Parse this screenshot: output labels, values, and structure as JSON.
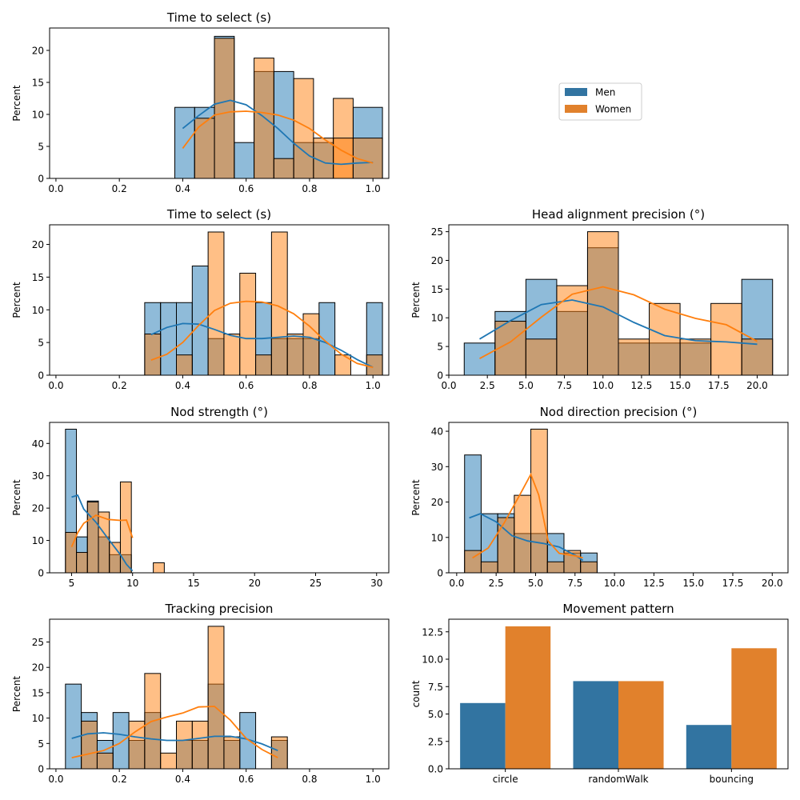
{
  "colors": {
    "men": "#1f77b4",
    "women": "#ff7f0e",
    "men_bar": "#3274a1",
    "women_bar": "#e1812c",
    "overlap": "#808a8f"
  },
  "legend": {
    "entries": [
      "Men",
      "Women"
    ]
  },
  "chart_data": [
    {
      "type": "histogram",
      "title": "Time to select (s)",
      "ylabel": "Percent",
      "xlim": [
        -0.02,
        1.05
      ],
      "ylim": [
        0,
        23.5
      ],
      "xticks": [
        0.0,
        0.2,
        0.4,
        0.6,
        0.8,
        1.0
      ],
      "xtick_labels": [
        "0.0",
        "0.2",
        "0.4",
        "0.6",
        "0.8",
        "1.0"
      ],
      "yticks": [
        0,
        5,
        10,
        15,
        20
      ],
      "ytick_labels": [
        "0",
        "5",
        "10",
        "15",
        "20"
      ],
      "bin_edges": [
        0.375,
        0.4375,
        0.5,
        0.5625,
        0.625,
        0.6875,
        0.75,
        0.8125,
        0.875,
        0.9375,
        1.03
      ],
      "series": [
        {
          "name": "Men",
          "values": [
            11.1,
            11.1,
            22.2,
            5.6,
            16.7,
            16.7,
            5.6,
            5.6,
            0,
            11.1
          ],
          "kde_x": [
            0.4,
            0.45,
            0.5,
            0.55,
            0.6,
            0.65,
            0.7,
            0.75,
            0.8,
            0.85,
            0.9,
            0.95,
            1.0
          ],
          "kde_y": [
            7.8,
            9.8,
            11.6,
            12.2,
            11.5,
            9.8,
            7.8,
            5.5,
            3.5,
            2.4,
            2.2,
            2.4,
            2.5
          ]
        },
        {
          "name": "Women",
          "values": [
            0,
            9.4,
            21.9,
            0,
            18.8,
            3.1,
            15.6,
            6.3,
            12.5,
            0
          ],
          "extra_bins": [
            {
              "x0": 0.875,
              "x1": 0.9375,
              "value": 6.3
            },
            {
              "x0": 0.9375,
              "x1": 1.03,
              "value": 6.3
            }
          ],
          "kde_x": [
            0.4,
            0.45,
            0.5,
            0.55,
            0.6,
            0.65,
            0.7,
            0.75,
            0.8,
            0.85,
            0.9,
            0.95,
            1.0
          ],
          "kde_y": [
            4.7,
            8.0,
            9.9,
            10.4,
            10.5,
            10.3,
            9.9,
            9.1,
            7.8,
            6.0,
            4.4,
            3.1,
            2.4
          ]
        }
      ]
    },
    {
      "type": "histogram",
      "title": "Time to select (s)",
      "ylabel": "Percent",
      "xlim": [
        -0.02,
        1.05
      ],
      "ylim": [
        0,
        23
      ],
      "xticks": [
        0.0,
        0.2,
        0.4,
        0.6,
        0.8,
        1.0
      ],
      "xtick_labels": [
        "0.0",
        "0.2",
        "0.4",
        "0.6",
        "0.8",
        "1.0"
      ],
      "yticks": [
        0,
        5,
        10,
        15,
        20
      ],
      "ytick_labels": [
        "0",
        "5",
        "10",
        "15",
        "20"
      ],
      "bin_edges": [
        0.28,
        0.33,
        0.38,
        0.43,
        0.48,
        0.53,
        0.58,
        0.63,
        0.68,
        0.73,
        0.78,
        0.83,
        0.88,
        0.93,
        0.98,
        1.03
      ],
      "series": [
        {
          "name": "Men",
          "values": [
            11.1,
            11.1,
            11.1,
            16.7,
            5.6,
            0,
            0,
            11.1,
            5.6,
            5.6,
            5.6,
            11.1,
            0,
            0,
            11.1
          ],
          "kde_x": [
            0.3,
            0.35,
            0.4,
            0.45,
            0.5,
            0.55,
            0.6,
            0.65,
            0.7,
            0.75,
            0.8,
            0.85,
            0.9,
            0.95,
            1.0
          ],
          "kde_y": [
            6.2,
            7.3,
            7.9,
            7.8,
            7.0,
            6.1,
            5.6,
            5.6,
            5.8,
            6.0,
            5.8,
            5.0,
            3.8,
            2.4,
            1.2
          ]
        },
        {
          "name": "Women",
          "values": [
            6.3,
            0,
            3.1,
            0,
            21.9,
            6.3,
            15.6,
            3.1,
            21.9,
            6.3,
            9.4,
            0,
            3.1,
            0,
            3.1
          ],
          "kde_x": [
            0.3,
            0.35,
            0.4,
            0.45,
            0.5,
            0.55,
            0.6,
            0.65,
            0.7,
            0.75,
            0.8,
            0.85,
            0.9,
            0.95,
            1.0
          ],
          "kde_y": [
            2.3,
            3.2,
            5.0,
            7.6,
            9.9,
            11.0,
            11.3,
            11.2,
            10.6,
            9.4,
            7.5,
            5.2,
            3.2,
            1.8,
            1.2
          ]
        }
      ]
    },
    {
      "type": "histogram",
      "title": "Head alignment precision (°)",
      "ylabel": "Percent",
      "xlim": [
        0,
        22
      ],
      "ylim": [
        0,
        26.2
      ],
      "xticks": [
        0,
        2.5,
        5,
        7.5,
        10,
        12.5,
        15,
        17.5,
        20
      ],
      "xtick_labels": [
        "0.0",
        "2.5",
        "5.0",
        "7.5",
        "10.0",
        "12.5",
        "15.0",
        "17.5",
        "20.0"
      ],
      "yticks": [
        0,
        5,
        10,
        15,
        20,
        25
      ],
      "ytick_labels": [
        "0",
        "5",
        "10",
        "15",
        "20",
        "25"
      ],
      "bin_edges": [
        1,
        3,
        5,
        7,
        9,
        11,
        13,
        15,
        17,
        19,
        21
      ],
      "series": [
        {
          "name": "Men",
          "values": [
            5.6,
            11.1,
            16.7,
            11.1,
            22.2,
            5.6,
            5.6,
            5.6,
            0,
            16.7
          ],
          "kde_x": [
            2,
            4,
            6,
            8,
            10,
            12,
            14,
            16,
            18,
            20
          ],
          "kde_y": [
            6.3,
            9.5,
            12.3,
            13.1,
            11.9,
            9.2,
            6.9,
            6.0,
            5.8,
            5.4
          ]
        },
        {
          "name": "Women",
          "values": [
            0,
            9.4,
            6.3,
            15.6,
            25.0,
            6.3,
            12.5,
            6.3,
            12.5,
            6.3
          ],
          "kde_x": [
            2,
            4,
            6,
            8,
            10,
            12,
            14,
            16,
            18,
            20
          ],
          "kde_y": [
            2.9,
            5.8,
            10.1,
            14.1,
            15.4,
            14.0,
            11.5,
            9.9,
            8.8,
            5.9
          ]
        }
      ]
    },
    {
      "type": "histogram",
      "title": "Nod strength (°)",
      "ylabel": "Percent",
      "xlim": [
        3.2,
        31
      ],
      "ylim": [
        0,
        46.5
      ],
      "xticks": [
        5,
        10,
        15,
        20,
        25,
        30
      ],
      "xtick_labels": [
        "5",
        "10",
        "15",
        "20",
        "25",
        "30"
      ],
      "yticks": [
        0,
        10,
        20,
        30,
        40
      ],
      "ytick_labels": [
        "0",
        "10",
        "20",
        "30",
        "40"
      ],
      "bin_edges": [
        4.5,
        5.4,
        6.3,
        7.2,
        8.1,
        9.0,
        9.9,
        10.8,
        11.7,
        12.6
      ],
      "series": [
        {
          "name": "Men",
          "values": [
            44.4,
            11.1,
            22.2,
            11.1,
            5.6,
            5.6,
            0,
            0,
            0
          ],
          "kde_x": [
            5,
            5.5,
            6,
            7,
            8,
            9,
            9.5,
            10
          ],
          "kde_y": [
            23.4,
            24.0,
            19.7,
            15.6,
            10.5,
            5.6,
            2.6,
            0.6
          ]
        },
        {
          "name": "Women",
          "values": [
            12.5,
            6.3,
            21.9,
            18.8,
            9.4,
            28.1,
            0,
            0,
            3.1
          ],
          "kde_x": [
            5,
            5.5,
            6,
            7,
            8,
            9,
            9.5,
            10
          ],
          "kde_y": [
            8.0,
            12.4,
            15.3,
            17.8,
            16.5,
            16.2,
            16.3,
            10.8
          ]
        }
      ]
    },
    {
      "type": "histogram",
      "title": "Nod direction precision (°)",
      "ylabel": "Percent",
      "xlim": [
        -0.5,
        21
      ],
      "ylim": [
        0,
        42.5
      ],
      "xticks": [
        0,
        2.5,
        5,
        7.5,
        10,
        12.5,
        15,
        17.5,
        20
      ],
      "xtick_labels": [
        "0.0",
        "2.5",
        "5.0",
        "7.5",
        "10.0",
        "12.5",
        "15.0",
        "17.5",
        "20.0"
      ],
      "yticks": [
        0,
        10,
        20,
        30,
        40
      ],
      "ytick_labels": [
        "0",
        "10",
        "20",
        "30",
        "40"
      ],
      "bin_edges": [
        0.5,
        1.55,
        2.6,
        3.65,
        4.7,
        5.75,
        6.8,
        7.85,
        8.9
      ],
      "series": [
        {
          "name": "Men",
          "values": [
            33.3,
            16.7,
            16.7,
            11.1,
            11.1,
            11.1,
            5.6,
            5.6
          ],
          "kde_x": [
            0.8,
            1.5,
            2.5,
            3.5,
            4.5,
            5.5,
            6.5,
            7.5,
            8.0
          ],
          "kde_y": [
            15.5,
            16.7,
            14.4,
            10.5,
            9.0,
            8.3,
            7.3,
            5.0,
            3.5
          ]
        },
        {
          "name": "Women",
          "values": [
            6.3,
            3.1,
            15.6,
            21.9,
            40.6,
            3.1,
            6.3,
            3.1
          ],
          "kde_x": [
            1.0,
            2.0,
            3.0,
            4.0,
            4.7,
            5.2,
            5.8,
            6.5,
            7.5,
            8.0
          ],
          "kde_y": [
            4.2,
            7.0,
            14.0,
            22.0,
            27.8,
            22.0,
            9.0,
            5.5,
            4.8,
            4.2
          ]
        }
      ]
    },
    {
      "type": "histogram",
      "title": "Tracking precision",
      "ylabel": "Percent",
      "xlim": [
        -0.02,
        1.05
      ],
      "ylim": [
        0,
        29.5
      ],
      "xticks": [
        0.0,
        0.2,
        0.4,
        0.6,
        0.8,
        1.0
      ],
      "xtick_labels": [
        "0.0",
        "0.2",
        "0.4",
        "0.6",
        "0.8",
        "1.0"
      ],
      "yticks": [
        0,
        5,
        10,
        15,
        20,
        25
      ],
      "ytick_labels": [
        "0",
        "5",
        "10",
        "15",
        "20",
        "25"
      ],
      "bin_edges": [
        0.03,
        0.08,
        0.13,
        0.18,
        0.23,
        0.28,
        0.33,
        0.38,
        0.43,
        0.48,
        0.53,
        0.58,
        0.63,
        0.68,
        0.73
      ],
      "series": [
        {
          "name": "Men",
          "values": [
            16.7,
            11.1,
            5.6,
            11.1,
            5.6,
            11.1,
            0,
            5.6,
            5.6,
            16.7,
            5.6,
            11.1,
            0,
            5.6
          ],
          "kde_x": [
            0.05,
            0.1,
            0.15,
            0.2,
            0.25,
            0.3,
            0.35,
            0.4,
            0.45,
            0.5,
            0.55,
            0.6,
            0.65,
            0.7
          ],
          "kde_y": [
            6.0,
            6.9,
            7.1,
            6.8,
            6.3,
            5.9,
            5.6,
            5.6,
            6.0,
            6.4,
            6.4,
            5.9,
            4.9,
            3.6
          ]
        },
        {
          "name": "Women",
          "values": [
            0,
            9.4,
            3.1,
            0,
            9.4,
            18.8,
            3.1,
            9.4,
            9.4,
            28.1,
            6.3,
            0,
            0,
            6.3
          ],
          "kde_x": [
            0.05,
            0.1,
            0.15,
            0.2,
            0.25,
            0.3,
            0.35,
            0.4,
            0.45,
            0.5,
            0.55,
            0.6,
            0.65,
            0.7
          ],
          "kde_y": [
            2.2,
            2.9,
            3.6,
            5.0,
            7.3,
            9.3,
            10.2,
            11.0,
            12.2,
            12.3,
            9.6,
            6.0,
            3.8,
            2.2
          ]
        }
      ]
    },
    {
      "type": "bar",
      "title": "Movement pattern",
      "ylabel": "count",
      "xlabel": "",
      "ylim": [
        0,
        13.65
      ],
      "yticks": [
        0,
        2.5,
        5,
        7.5,
        10,
        12.5
      ],
      "ytick_labels": [
        "0.0",
        "2.5",
        "5.0",
        "7.5",
        "10.0",
        "12.5"
      ],
      "categories": [
        "circle",
        "randomWalk",
        "bouncing"
      ],
      "series": [
        {
          "name": "Men",
          "values": [
            6,
            8,
            4
          ]
        },
        {
          "name": "Women",
          "values": [
            13,
            8,
            11
          ]
        }
      ]
    }
  ]
}
